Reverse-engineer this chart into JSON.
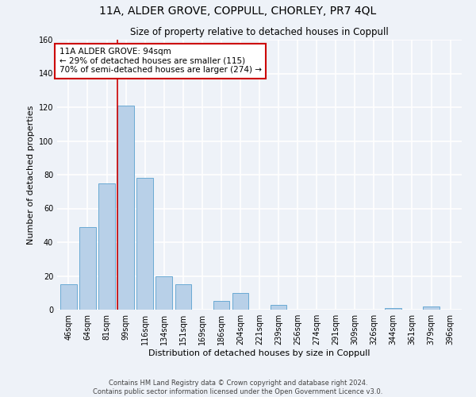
{
  "title": "11A, ALDER GROVE, COPPULL, CHORLEY, PR7 4QL",
  "subtitle": "Size of property relative to detached houses in Coppull",
  "xlabel": "Distribution of detached houses by size in Coppull",
  "ylabel": "Number of detached properties",
  "bar_labels": [
    "46sqm",
    "64sqm",
    "81sqm",
    "99sqm",
    "116sqm",
    "134sqm",
    "151sqm",
    "169sqm",
    "186sqm",
    "204sqm",
    "221sqm",
    "239sqm",
    "256sqm",
    "274sqm",
    "291sqm",
    "309sqm",
    "326sqm",
    "344sqm",
    "361sqm",
    "379sqm",
    "396sqm"
  ],
  "bar_values": [
    15,
    49,
    75,
    121,
    78,
    20,
    15,
    0,
    5,
    10,
    0,
    3,
    0,
    0,
    0,
    0,
    0,
    1,
    0,
    2,
    0
  ],
  "bar_color": "#b8d0e8",
  "bar_edge_color": "#6aaad4",
  "vline_x_index": 3,
  "vline_color": "#cc0000",
  "ylim": [
    0,
    160
  ],
  "yticks": [
    0,
    20,
    40,
    60,
    80,
    100,
    120,
    140,
    160
  ],
  "annotation_title": "11A ALDER GROVE: 94sqm",
  "annotation_line1": "← 29% of detached houses are smaller (115)",
  "annotation_line2": "70% of semi-detached houses are larger (274) →",
  "annotation_box_color": "#ffffff",
  "annotation_box_edge": "#cc0000",
  "footer_line1": "Contains HM Land Registry data © Crown copyright and database right 2024.",
  "footer_line2": "Contains public sector information licensed under the Open Government Licence v3.0.",
  "background_color": "#eef2f8",
  "grid_color": "#ffffff",
  "title_fontsize": 10,
  "subtitle_fontsize": 8.5,
  "axis_label_fontsize": 8,
  "tick_fontsize": 7,
  "annotation_fontsize": 7.5,
  "footer_fontsize": 6
}
